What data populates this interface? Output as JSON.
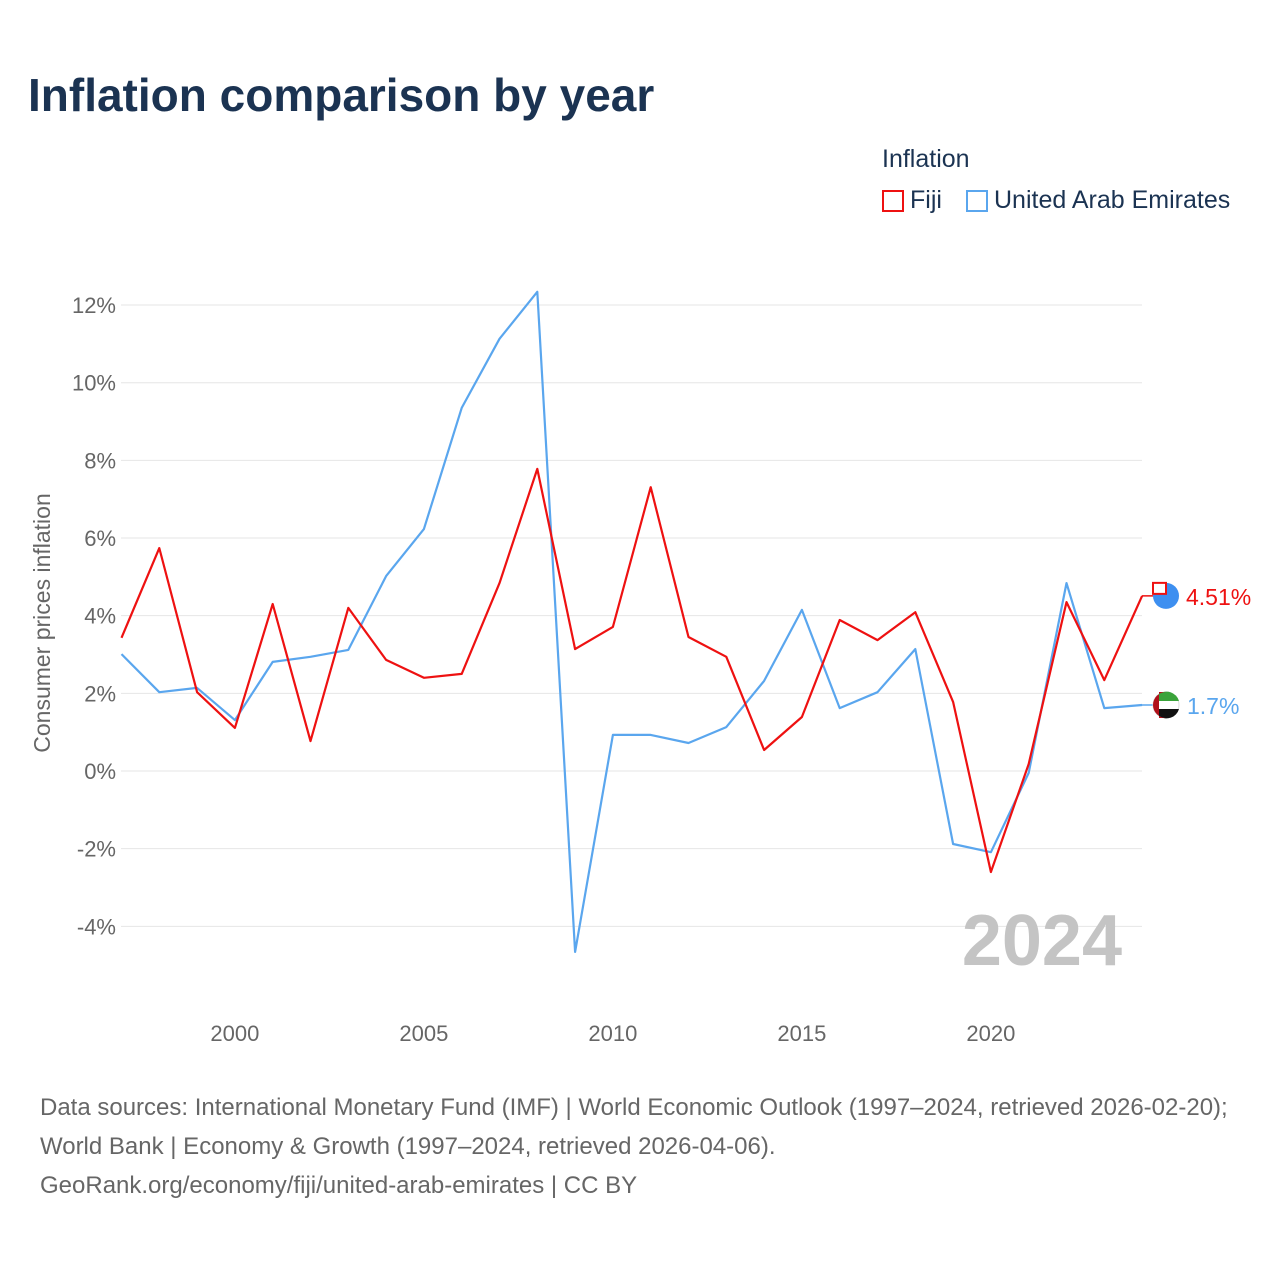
{
  "title": "Inflation comparison by year",
  "legend": {
    "title": "Inflation",
    "items": [
      {
        "label": "Fiji",
        "color": "#ee1111"
      },
      {
        "label": "United Arab Emirates",
        "color": "#5aa6ee"
      }
    ]
  },
  "source": {
    "line1": "Data sources: International Monetary Fund (IMF) | World Economic Outlook (1997–2024, retrieved 2026-02-20); World Bank | Economy & Growth (1997–2024, retrieved 2026-04-06).",
    "line2": "GeoRank.org/economy/fiji/united-arab-emirates | CC BY"
  },
  "chart_data": {
    "type": "line",
    "title": "Inflation comparison by year",
    "xlabel": "",
    "ylabel": "Consumer prices inflation",
    "x": [
      1997,
      1998,
      1999,
      2000,
      2001,
      2002,
      2003,
      2004,
      2005,
      2006,
      2007,
      2008,
      2009,
      2010,
      2011,
      2012,
      2013,
      2014,
      2015,
      2016,
      2017,
      2018,
      2019,
      2020,
      2021,
      2022,
      2023,
      2024
    ],
    "xticks": [
      2000,
      2005,
      2010,
      2015,
      2020
    ],
    "yticks": [
      -4,
      -2,
      0,
      2,
      4,
      6,
      8,
      10,
      12
    ],
    "ytick_labels": [
      "-4%",
      "-2%",
      "0%",
      "2%",
      "4%",
      "6%",
      "8%",
      "10%",
      "12%"
    ],
    "ylim": [
      -5.6,
      12.8
    ],
    "xlim": [
      1997,
      2024
    ],
    "grid": true,
    "legend_position": "top-right",
    "year_annotation": "2024",
    "series": [
      {
        "name": "Fiji",
        "color": "#ee1111",
        "end_label": "4.51%",
        "values": [
          3.43,
          5.74,
          2.03,
          1.11,
          4.3,
          0.77,
          4.2,
          2.86,
          2.4,
          2.5,
          4.84,
          7.78,
          3.14,
          3.71,
          7.31,
          3.45,
          2.94,
          0.54,
          1.39,
          3.89,
          3.37,
          4.09,
          1.78,
          -2.6,
          0.18,
          4.35,
          2.34,
          4.51
        ]
      },
      {
        "name": "United Arab Emirates",
        "color": "#5aa6ee",
        "end_label": "1.7%",
        "values": [
          3.01,
          2.03,
          2.14,
          1.31,
          2.81,
          2.94,
          3.12,
          5.02,
          6.23,
          9.35,
          11.13,
          12.34,
          -4.66,
          0.93,
          0.93,
          0.72,
          1.13,
          2.32,
          4.15,
          1.62,
          2.03,
          3.14,
          -1.88,
          -2.09,
          -0.05,
          4.84,
          1.62,
          1.7
        ]
      }
    ]
  }
}
